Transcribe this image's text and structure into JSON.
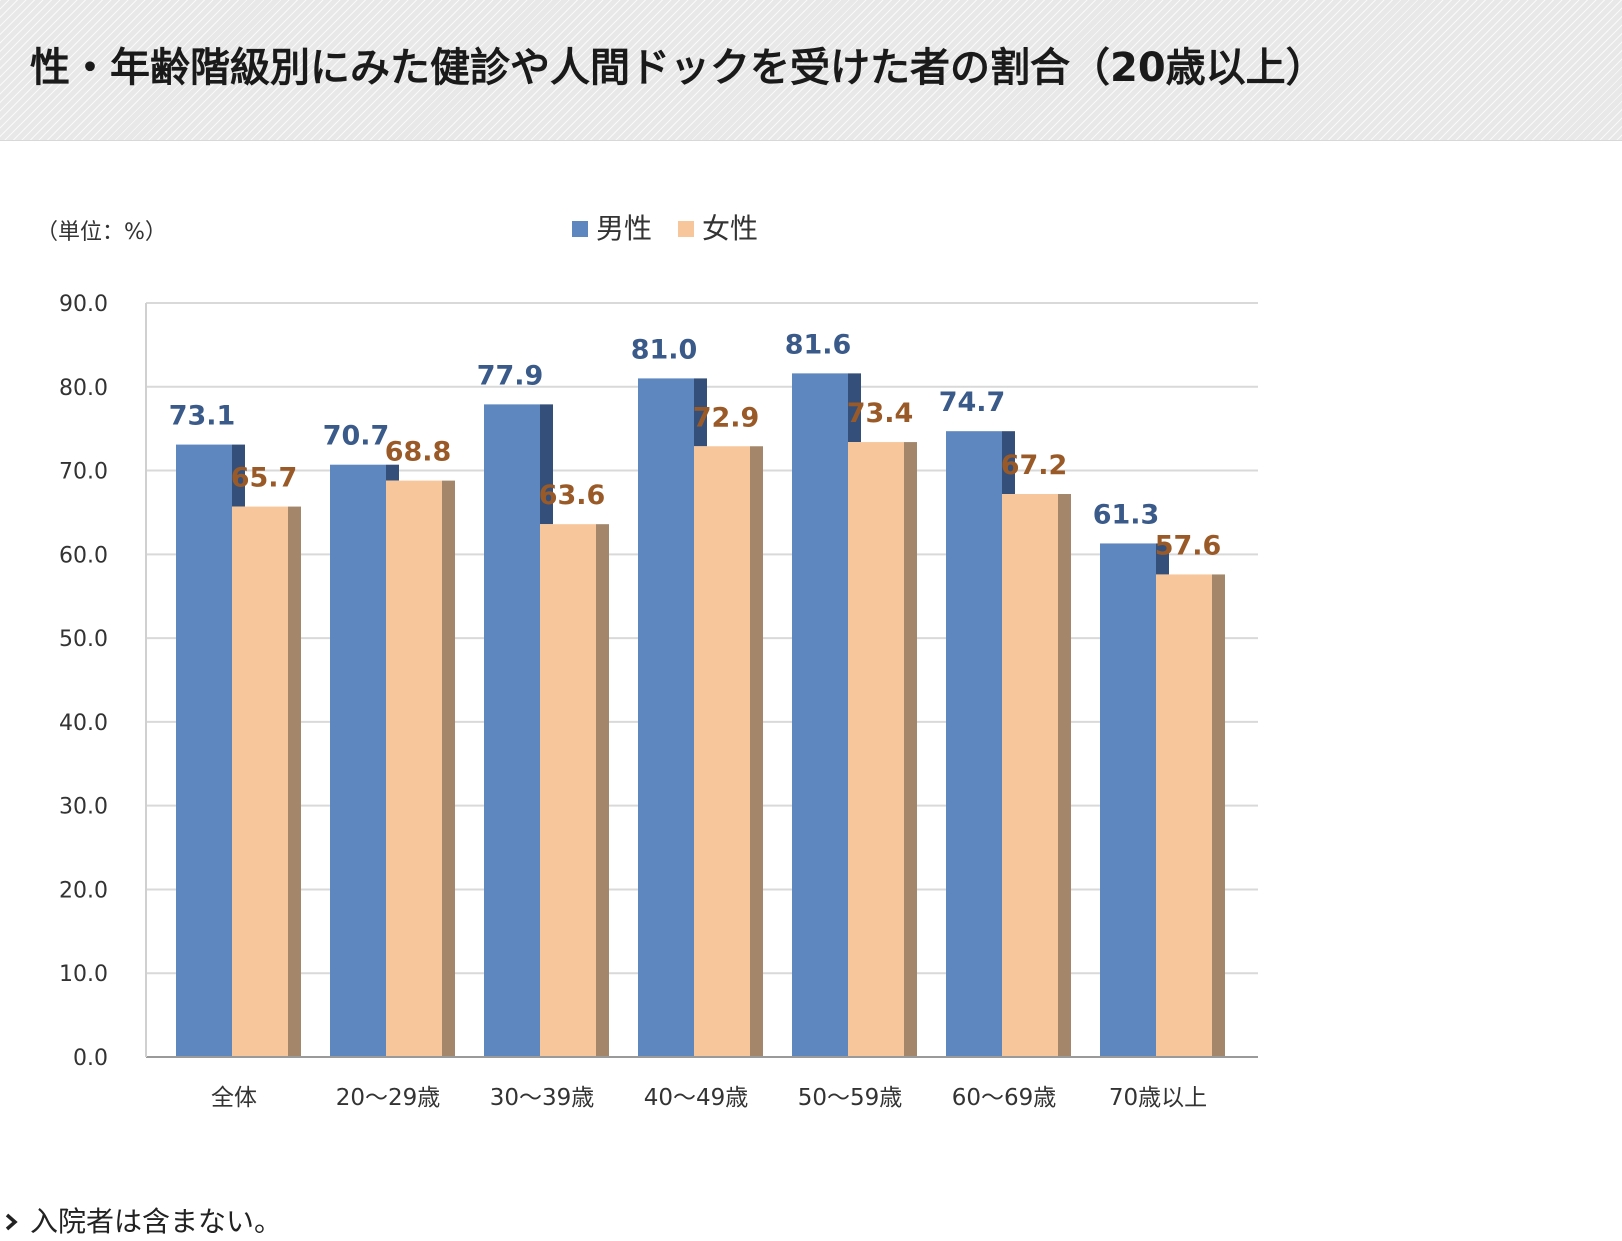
{
  "header": {
    "title": "性・年齢階級別にみた健診や人間ドックを受けた者の割合（20歳以上）"
  },
  "chart_data": {
    "type": "bar",
    "unit_label": "（単位：%）",
    "categories": [
      "全体",
      "20～29歳",
      "30～39歳",
      "40～49歳",
      "50～59歳",
      "60～69歳",
      "70歳以上"
    ],
    "series": [
      {
        "name": "男性",
        "values": [
          73.1,
          70.7,
          77.9,
          81.0,
          81.6,
          74.7,
          61.3
        ],
        "color": "#5f87bf",
        "shade": "#34507a",
        "label_color": "#3a5a8a"
      },
      {
        "name": "女性",
        "values": [
          65.7,
          68.8,
          63.6,
          72.9,
          73.4,
          67.2,
          57.6
        ],
        "color": "#f7c69b",
        "shade": "#a4876a",
        "label_color": "#9a5a28"
      }
    ],
    "ylim": [
      0,
      90
    ],
    "yticks": [
      "0.0",
      "10.0",
      "20.0",
      "30.0",
      "40.0",
      "50.0",
      "60.0",
      "70.0",
      "80.0",
      "90.0"
    ],
    "grid": true,
    "legend_position": "top-center",
    "gridline_color": "#d9d9d9"
  },
  "footnote": {
    "text": "入院者は含まない。",
    "icon": "chevron-right-icon"
  }
}
